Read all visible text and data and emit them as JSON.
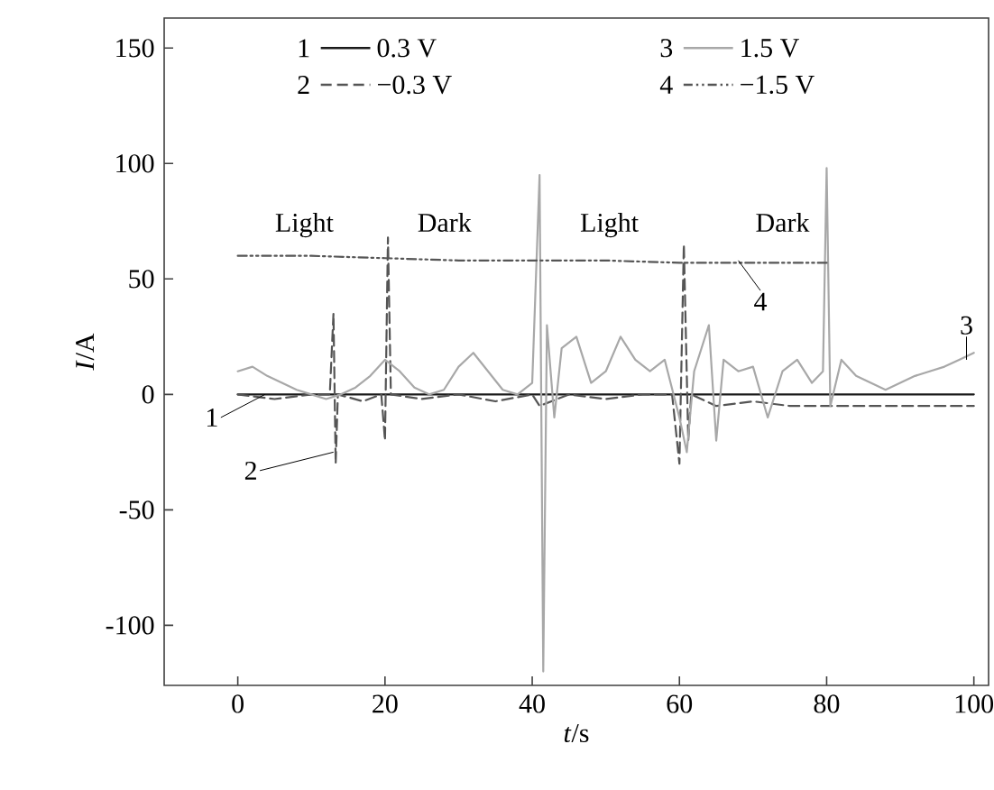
{
  "chart_data": {
    "type": "line",
    "xlabel": "*t*/s",
    "ylabel": "*I*/A",
    "xlim": [
      -10,
      102
    ],
    "ylim": [
      -126,
      163
    ],
    "xticks": [
      0,
      20,
      40,
      60,
      80,
      100
    ],
    "yticks": [
      -100,
      -50,
      0,
      50,
      100,
      150
    ],
    "legend": "top",
    "grid": false,
    "series": [
      {
        "name": "0.3 V",
        "color": "#1a1a1a",
        "line_style": "solid",
        "x": [
          0,
          10,
          20,
          30,
          40,
          50,
          60,
          70,
          80,
          90,
          100
        ],
        "values": [
          0,
          0,
          0,
          0,
          0,
          0,
          0,
          0,
          0,
          0,
          0
        ]
      },
      {
        "name": "−0.3 V",
        "color": "#555555",
        "line_style": "dashed",
        "x": [
          0,
          5,
          10,
          12.5,
          13,
          13.3,
          13.6,
          17,
          19.5,
          20,
          20.4,
          20.8,
          25,
          30,
          35,
          40,
          41,
          45,
          50,
          55,
          59,
          60,
          60.6,
          61.2,
          61.6,
          65,
          70,
          75,
          80,
          85,
          90,
          95,
          100
        ],
        "values": [
          0,
          -2,
          0,
          0,
          35,
          -30,
          0,
          -3,
          0,
          -20,
          68,
          0,
          -2,
          0,
          -3,
          0,
          -5,
          0,
          -2,
          0,
          0,
          -30,
          65,
          -20,
          0,
          -5,
          -3,
          -5,
          -5,
          -5,
          -5,
          -5,
          -5
        ]
      },
      {
        "name": "1.5 V",
        "color": "#a8a8a8",
        "line_style": "solid",
        "x": [
          0,
          2,
          4,
          6,
          8,
          10,
          12,
          14,
          16,
          18,
          20,
          22,
          24,
          26,
          28,
          30,
          32,
          34,
          36,
          38,
          40,
          41,
          41.5,
          42,
          43,
          44,
          46,
          48,
          50,
          52,
          54,
          56,
          58,
          60,
          61,
          62,
          64,
          65,
          66,
          68,
          70,
          72,
          74,
          76,
          78,
          79.5,
          80,
          80.5,
          82,
          84,
          86,
          88,
          90,
          92,
          94,
          96,
          98,
          100
        ],
        "values": [
          10,
          12,
          8,
          5,
          2,
          0,
          -2,
          0,
          3,
          8,
          15,
          10,
          3,
          0,
          2,
          12,
          18,
          10,
          2,
          0,
          5,
          95,
          -120,
          30,
          -10,
          20,
          25,
          5,
          10,
          25,
          15,
          10,
          15,
          -10,
          -25,
          10,
          30,
          -20,
          15,
          10,
          12,
          -10,
          10,
          15,
          5,
          10,
          98,
          -5,
          15,
          8,
          5,
          2,
          5,
          8,
          10,
          12,
          15,
          18
        ]
      },
      {
        "name": "−1.5 V",
        "color": "#555555",
        "line_style": "dotted",
        "x": [
          0,
          10,
          20,
          30,
          40,
          50,
          60,
          70,
          80
        ],
        "values": [
          60,
          60,
          59,
          58,
          58,
          58,
          57,
          57,
          57
        ]
      }
    ],
    "annotations": [
      {
        "text": "1",
        "x": 3.7,
        "y": 0
      },
      {
        "text": "2",
        "x": 13,
        "y": -25
      },
      {
        "text": "3",
        "x": 99,
        "y": 15
      },
      {
        "text": "4",
        "x": 68,
        "y": 58
      },
      "Light",
      "Dark",
      "Light",
      "Dark"
    ]
  }
}
